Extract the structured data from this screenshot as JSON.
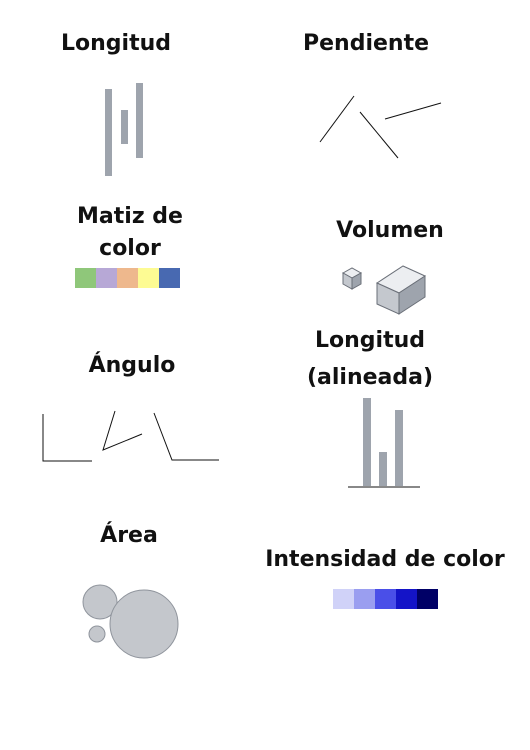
{
  "panels": {
    "length": {
      "title": "Longitud"
    },
    "slope": {
      "title": "Pendiente"
    },
    "hue": {
      "title_line1": "Matiz de",
      "title_line2": "color",
      "colors": [
        "#8fc77a",
        "#b7a8d6",
        "#eeb88d",
        "#fdfb93",
        "#4869b1"
      ]
    },
    "volume": {
      "title": "Volumen"
    },
    "angle": {
      "title": "Ángulo"
    },
    "aligned_length": {
      "title_line1": "Longitud",
      "title_line2": "(alineada)"
    },
    "area": {
      "title": "Área"
    },
    "intensity": {
      "title": "Intensidad de color",
      "colors": [
        "#d0d2f8",
        "#9a9ef0",
        "#4a4fe8",
        "#1414c8",
        "#000066"
      ]
    }
  },
  "mark_color": "#9ea4ad",
  "area_fill": "#c4c7cc",
  "line_color": "#111111"
}
